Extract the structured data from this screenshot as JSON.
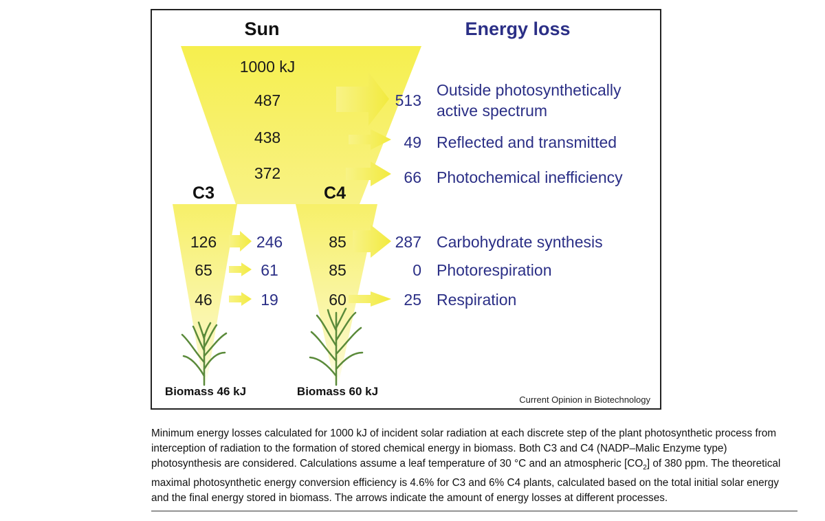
{
  "diagram": {
    "sun_label": "Sun",
    "energy_loss_title": "Energy loss",
    "c3_label": "C3",
    "c4_label": "C4",
    "sun_values": [
      "1000 kJ",
      "487",
      "438",
      "372"
    ],
    "loss_values": [
      "513",
      "49",
      "66"
    ],
    "loss_labels": [
      "Outside photosynthetically",
      "active spectrum",
      "Reflected and transmitted",
      "Photochemical inefficiency"
    ],
    "c3_values": [
      "126",
      "65",
      "46"
    ],
    "c3_losses": [
      "246",
      "61",
      "19"
    ],
    "c4_values": [
      "85",
      "85",
      "60"
    ],
    "c4_losses": [
      "287",
      "0",
      "25"
    ],
    "process_labels": [
      "Carbohydrate synthesis",
      "Photorespiration",
      "Respiration"
    ],
    "c3_biomass": "Biomass 46 kJ",
    "c4_biomass": "Biomass 60 kJ",
    "credit": "Current Opinion in Biotechnology"
  },
  "colors": {
    "funnel": "#f7f056",
    "arrow": "#f4ee52",
    "loss_text": "#2b2f86",
    "plant": "#5a8a3a"
  },
  "caption": {
    "part1": "Minimum energy losses calculated for 1000 kJ of incident solar radiation at each discrete step of the plant photosynthetic process from interception of radiation to the formation of stored chemical energy in biomass. Both C3 and C4 (NADP–Malic Enzyme type) photosynthesis are considered. Calculations assume a leaf temperature of 30 °C and an atmospheric [CO",
    "sub": "2",
    "part2": "] of 380 ppm. The theoretical maximal photosynthetic energy conversion efficiency is 4.6% for C3 and 6% C4 plants, calculated based on the total initial solar energy and the final energy stored in biomass. The arrows indicate the amount of energy losses at different processes."
  }
}
